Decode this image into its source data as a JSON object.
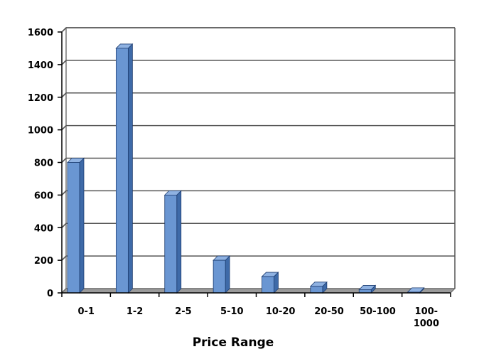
{
  "chart_data": {
    "type": "bar",
    "title": "",
    "xlabel": "Price Range",
    "ylabel": "",
    "categories": [
      "0-1",
      "1-2",
      "2-5",
      "5-10",
      "10-20",
      "20-50",
      "50-100",
      "100-1000"
    ],
    "category_lines": [
      [
        "0-1"
      ],
      [
        "1-2"
      ],
      [
        "2-5"
      ],
      [
        "5-10"
      ],
      [
        "10-20"
      ],
      [
        "20-50"
      ],
      [
        "50-100"
      ],
      [
        "100-",
        "1000"
      ]
    ],
    "values": [
      800,
      1500,
      600,
      200,
      100,
      40,
      20,
      5
    ],
    "ylim": [
      0,
      1600
    ],
    "yticks": [
      0,
      200,
      400,
      600,
      800,
      1000,
      1200,
      1400,
      1600
    ],
    "grid": true,
    "legend": "none",
    "style": "3d-column",
    "colors": {
      "bar_front": "#6a96d2",
      "bar_side": "#3e6aa8",
      "bar_top": "#8fb2e2",
      "bar_edge": "#1f3f73",
      "gridline": "#555555",
      "floor": "#9a9a9a",
      "wall": "#bdbdbd"
    }
  }
}
